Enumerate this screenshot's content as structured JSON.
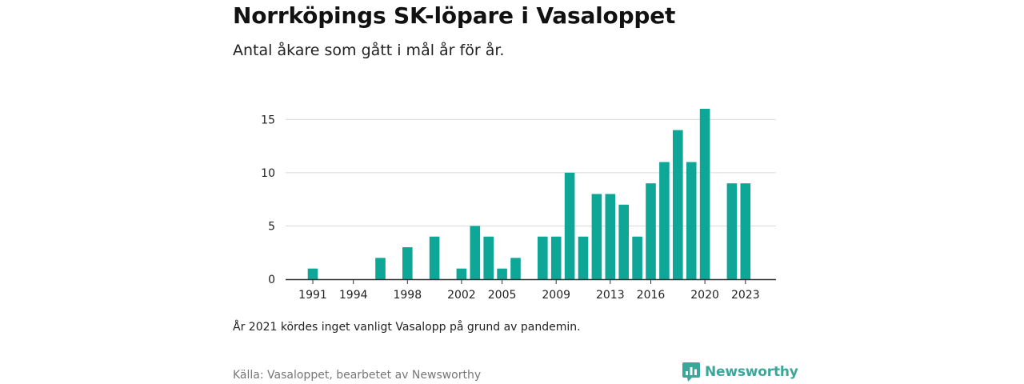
{
  "header": {
    "title": "Norrköpings SK-löpare i Vasaloppet",
    "subtitle": "Antal åkare som gått i mål år för år."
  },
  "footer": {
    "note": "År 2021 kördes inget vanligt Vasalopp på grund av pandemin.",
    "source": "Källa: Vasaloppet, bearbetet av Newsworthy",
    "brand": "Newsworthy",
    "brand_icon": "newsworthy-logo-icon"
  },
  "colors": {
    "bar": "#0ea697",
    "grid": "#d9d9d9",
    "axis": "#333333",
    "brand": "#3aa79a"
  },
  "chart_data": {
    "type": "bar",
    "title": "",
    "xlabel": "",
    "ylabel": "",
    "ylim": [
      0,
      16
    ],
    "yticks": [
      0,
      5,
      10,
      15
    ],
    "xtick_labels": [
      "1991",
      "1994",
      "1998",
      "2002",
      "2005",
      "2009",
      "2013",
      "2016",
      "2020",
      "2023"
    ],
    "grid": true,
    "categories": [
      "1991",
      "1992",
      "1993",
      "1994",
      "1995",
      "1996",
      "1997",
      "1998",
      "1999",
      "2000",
      "2001",
      "2002",
      "2003",
      "2004",
      "2005",
      "2006",
      "2007",
      "2008",
      "2009",
      "2010",
      "2011",
      "2012",
      "2013",
      "2014",
      "2015",
      "2016",
      "2017",
      "2018",
      "2019",
      "2020",
      "2021",
      "2022",
      "2023"
    ],
    "values": [
      1,
      0,
      0,
      0,
      0,
      2,
      0,
      3,
      0,
      4,
      0,
      1,
      5,
      4,
      1,
      2,
      0,
      4,
      4,
      10,
      4,
      8,
      8,
      7,
      4,
      9,
      11,
      14,
      11,
      16,
      null,
      9,
      9
    ]
  }
}
